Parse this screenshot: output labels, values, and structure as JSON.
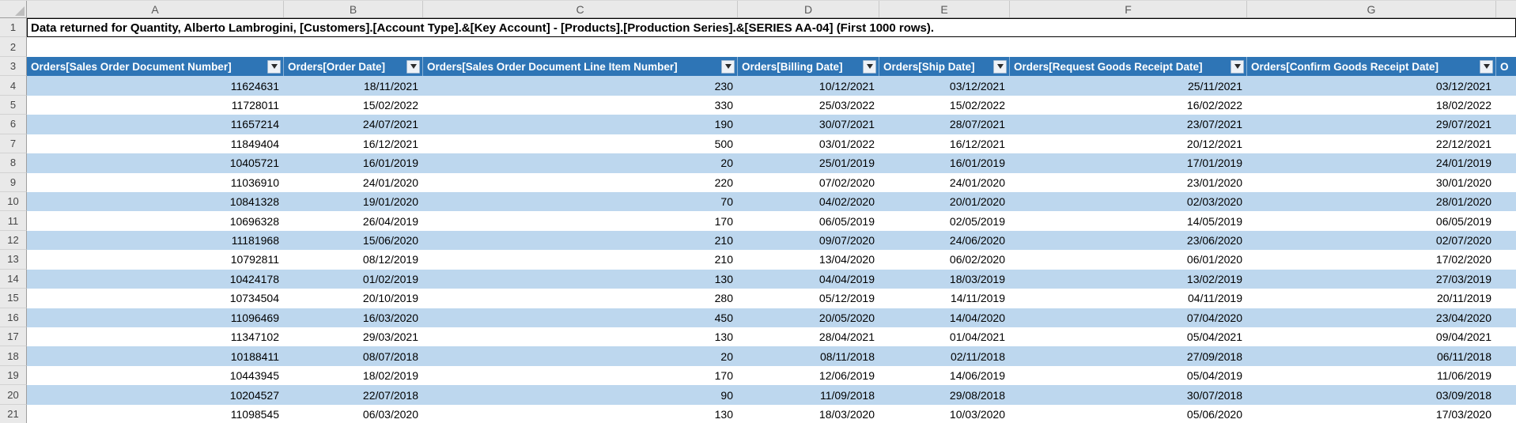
{
  "sheet": {
    "title_cell_text": "Data returned for Quantity, Alberto Lambrogini, [Customers].[Account Type].&[Key Account] - [Products].[Production Series].&[SERIES AA-04] (First 1000 rows).",
    "columns": [
      "A",
      "B",
      "C",
      "D",
      "E",
      "F",
      "G"
    ],
    "row_numbers": [
      1,
      2,
      3,
      4,
      5,
      6,
      7,
      8,
      9,
      10,
      11,
      12,
      13,
      14,
      15,
      16,
      17,
      18,
      19,
      20,
      21
    ]
  },
  "table": {
    "headers": [
      {
        "label": "Orders[Sales Order Document Number]"
      },
      {
        "label": "Orders[Order Date]"
      },
      {
        "label": "Orders[Sales Order Document Line Item Number]"
      },
      {
        "label": "Orders[Billing Date]"
      },
      {
        "label": "Orders[Ship Date]"
      },
      {
        "label": "Orders[Request Goods Receipt Date]"
      },
      {
        "label": "Orders[Confirm Goods Receipt Date]"
      },
      {
        "label": "O"
      }
    ],
    "rows": [
      [
        "11624631",
        "18/11/2021",
        "230",
        "10/12/2021",
        "03/12/2021",
        "25/11/2021",
        "03/12/2021"
      ],
      [
        "11728011",
        "15/02/2022",
        "330",
        "25/03/2022",
        "15/02/2022",
        "16/02/2022",
        "18/02/2022"
      ],
      [
        "11657214",
        "24/07/2021",
        "190",
        "30/07/2021",
        "28/07/2021",
        "23/07/2021",
        "29/07/2021"
      ],
      [
        "11849404",
        "16/12/2021",
        "500",
        "03/01/2022",
        "16/12/2021",
        "20/12/2021",
        "22/12/2021"
      ],
      [
        "10405721",
        "16/01/2019",
        "20",
        "25/01/2019",
        "16/01/2019",
        "17/01/2019",
        "24/01/2019"
      ],
      [
        "11036910",
        "24/01/2020",
        "220",
        "07/02/2020",
        "24/01/2020",
        "23/01/2020",
        "30/01/2020"
      ],
      [
        "10841328",
        "19/01/2020",
        "70",
        "04/02/2020",
        "20/01/2020",
        "02/03/2020",
        "28/01/2020"
      ],
      [
        "10696328",
        "26/04/2019",
        "170",
        "06/05/2019",
        "02/05/2019",
        "14/05/2019",
        "06/05/2019"
      ],
      [
        "11181968",
        "15/06/2020",
        "210",
        "09/07/2020",
        "24/06/2020",
        "23/06/2020",
        "02/07/2020"
      ],
      [
        "10792811",
        "08/12/2019",
        "210",
        "13/04/2020",
        "06/02/2020",
        "06/01/2020",
        "17/02/2020"
      ],
      [
        "10424178",
        "01/02/2019",
        "130",
        "04/04/2019",
        "18/03/2019",
        "13/02/2019",
        "27/03/2019"
      ],
      [
        "10734504",
        "20/10/2019",
        "280",
        "05/12/2019",
        "14/11/2019",
        "04/11/2019",
        "20/11/2019"
      ],
      [
        "11096469",
        "16/03/2020",
        "450",
        "20/05/2020",
        "14/04/2020",
        "07/04/2020",
        "23/04/2020"
      ],
      [
        "11347102",
        "29/03/2021",
        "130",
        "28/04/2021",
        "01/04/2021",
        "05/04/2021",
        "09/04/2021"
      ],
      [
        "10188411",
        "08/07/2018",
        "20",
        "08/11/2018",
        "02/11/2018",
        "27/09/2018",
        "06/11/2018"
      ],
      [
        "10443945",
        "18/02/2019",
        "170",
        "12/06/2019",
        "14/06/2019",
        "05/04/2019",
        "11/06/2019"
      ],
      [
        "10204527",
        "22/07/2018",
        "90",
        "11/09/2018",
        "29/08/2018",
        "30/07/2018",
        "03/09/2018"
      ],
      [
        "11098545",
        "06/03/2020",
        "130",
        "18/03/2020",
        "10/03/2020",
        "05/06/2020",
        "17/03/2020"
      ]
    ]
  },
  "colors": {
    "table_header_bg": "#2E75B6",
    "table_header_text": "#FFFFFF",
    "banded_row_bg": "#BDD7EE",
    "grid_chrome_bg": "#E9E9E9"
  }
}
